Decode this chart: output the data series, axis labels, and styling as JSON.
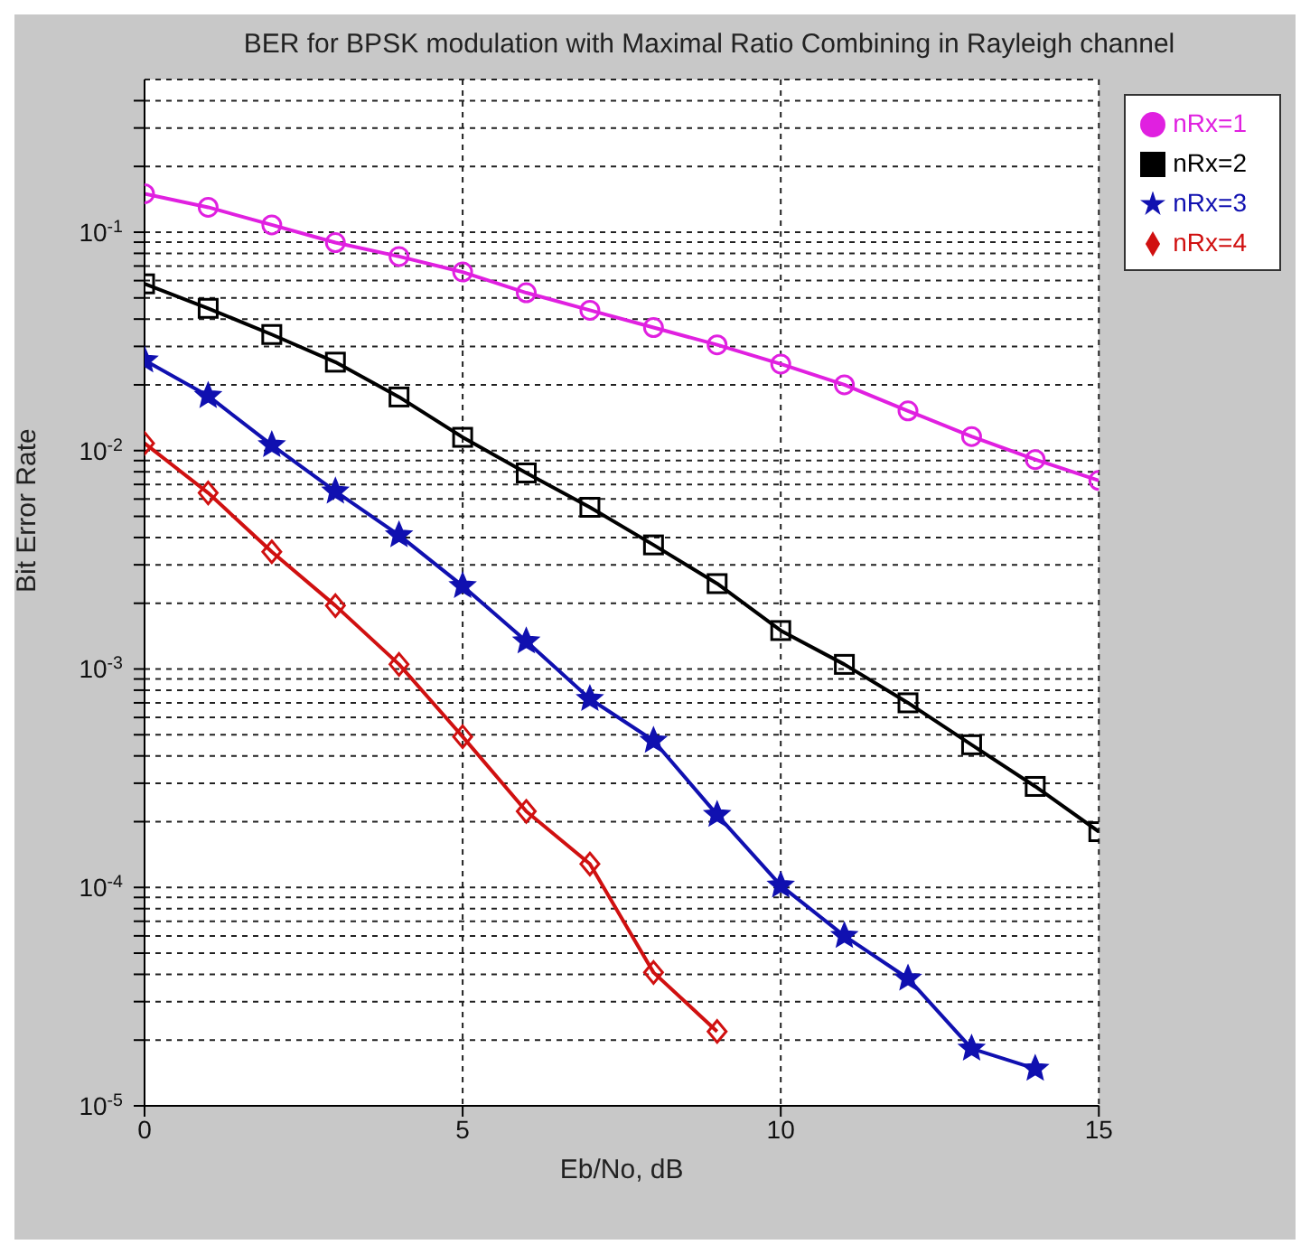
{
  "chart_data": {
    "type": "line",
    "title": "BER for BPSK modulation with Maximal Ratio Combining in Rayleigh channel",
    "xlabel": "Eb/No, dB",
    "ylabel": "Bit Error Rate",
    "x": [
      0,
      1,
      2,
      3,
      4,
      5,
      6,
      7,
      8,
      9,
      10,
      11,
      12,
      13,
      14,
      15
    ],
    "series": [
      {
        "name": "nRx=1",
        "color": "#e020e0",
        "marker": "circle",
        "values": [
          0.15,
          0.13,
          0.108,
          0.0896,
          0.0774,
          0.0657,
          0.0528,
          0.0439,
          0.0366,
          0.0305,
          0.0249,
          0.02,
          0.0152,
          0.0116,
          0.0091,
          0.0073
        ]
      },
      {
        "name": "nRx=2",
        "color": "#000000",
        "marker": "square",
        "values": [
          0.058,
          0.0448,
          0.034,
          0.0254,
          0.0176,
          0.0115,
          0.0079,
          0.0055,
          0.0037,
          0.00246,
          0.0015,
          0.00105,
          0.0007,
          0.00045,
          0.00029,
          0.00018
        ]
      },
      {
        "name": "nRx=3",
        "color": "#1010b0",
        "marker": "star",
        "values": [
          0.0259,
          0.0178,
          0.0106,
          0.0065,
          0.0041,
          0.0024,
          0.00134,
          0.00073,
          0.00047,
          0.000215,
          0.000102,
          6e-05,
          3.83e-05,
          1.83e-05,
          1.48e-05,
          null
        ]
      },
      {
        "name": "nRx=4",
        "color": "#d01010",
        "marker": "diamond",
        "values": [
          0.0108,
          0.0064,
          0.00344,
          0.00195,
          0.00105,
          0.00049,
          0.000223,
          0.000128,
          4.08e-05,
          2.19e-05,
          null,
          null,
          null,
          null,
          null,
          null
        ]
      }
    ],
    "log": "y",
    "xlim": [
      0,
      15
    ],
    "xticks": [
      0,
      5,
      10,
      15
    ],
    "ylim": [
      1e-05,
      0.5
    ],
    "yticks": [
      {
        "value": 1e-05,
        "label": "10$^{-5}$"
      },
      {
        "value": 2e-05,
        "label": null
      },
      {
        "value": 3e-05,
        "label": null
      },
      {
        "value": 4e-05,
        "label": null
      },
      {
        "value": 5e-05,
        "label": null
      },
      {
        "value": 6e-05,
        "label": null
      },
      {
        "value": 7e-05,
        "label": null
      },
      {
        "value": 8e-05,
        "label": null
      },
      {
        "value": 9e-05,
        "label": null
      },
      {
        "value": 0.0001,
        "label": "10$^{-4}$"
      },
      {
        "value": 0.0002,
        "label": null
      },
      {
        "value": 0.0003,
        "label": null
      },
      {
        "value": 0.0004,
        "label": null
      },
      {
        "value": 0.0005,
        "label": null
      },
      {
        "value": 0.0006,
        "label": null
      },
      {
        "value": 0.0007,
        "label": null
      },
      {
        "value": 0.0008,
        "label": null
      },
      {
        "value": 0.0009,
        "label": null
      },
      {
        "value": 0.001,
        "label": "10$^{-3}$"
      },
      {
        "value": 0.002,
        "label": null
      },
      {
        "value": 0.003,
        "label": null
      },
      {
        "value": 0.004,
        "label": null
      },
      {
        "value": 0.005,
        "label": null
      },
      {
        "value": 0.006,
        "label": null
      },
      {
        "value": 0.007,
        "label": null
      },
      {
        "value": 0.008,
        "label": null
      },
      {
        "value": 0.009,
        "label": null
      },
      {
        "value": 0.01,
        "label": "10$^{-2}$"
      },
      {
        "value": 0.02,
        "label": null
      },
      {
        "value": 0.03,
        "label": null
      },
      {
        "value": 0.04,
        "label": null
      },
      {
        "value": 0.05,
        "label": null
      },
      {
        "value": 0.06,
        "label": null
      },
      {
        "value": 0.07,
        "label": null
      },
      {
        "value": 0.08,
        "label": null
      },
      {
        "value": 0.09,
        "label": null
      },
      {
        "value": 0.1,
        "label": "10$^{-1}$"
      },
      {
        "value": 0.2,
        "label": null
      },
      {
        "value": 0.3,
        "label": null
      },
      {
        "value": 0.4,
        "label": null
      }
    ],
    "grid": true,
    "legend": "top right",
    "line_style": "solid"
  }
}
